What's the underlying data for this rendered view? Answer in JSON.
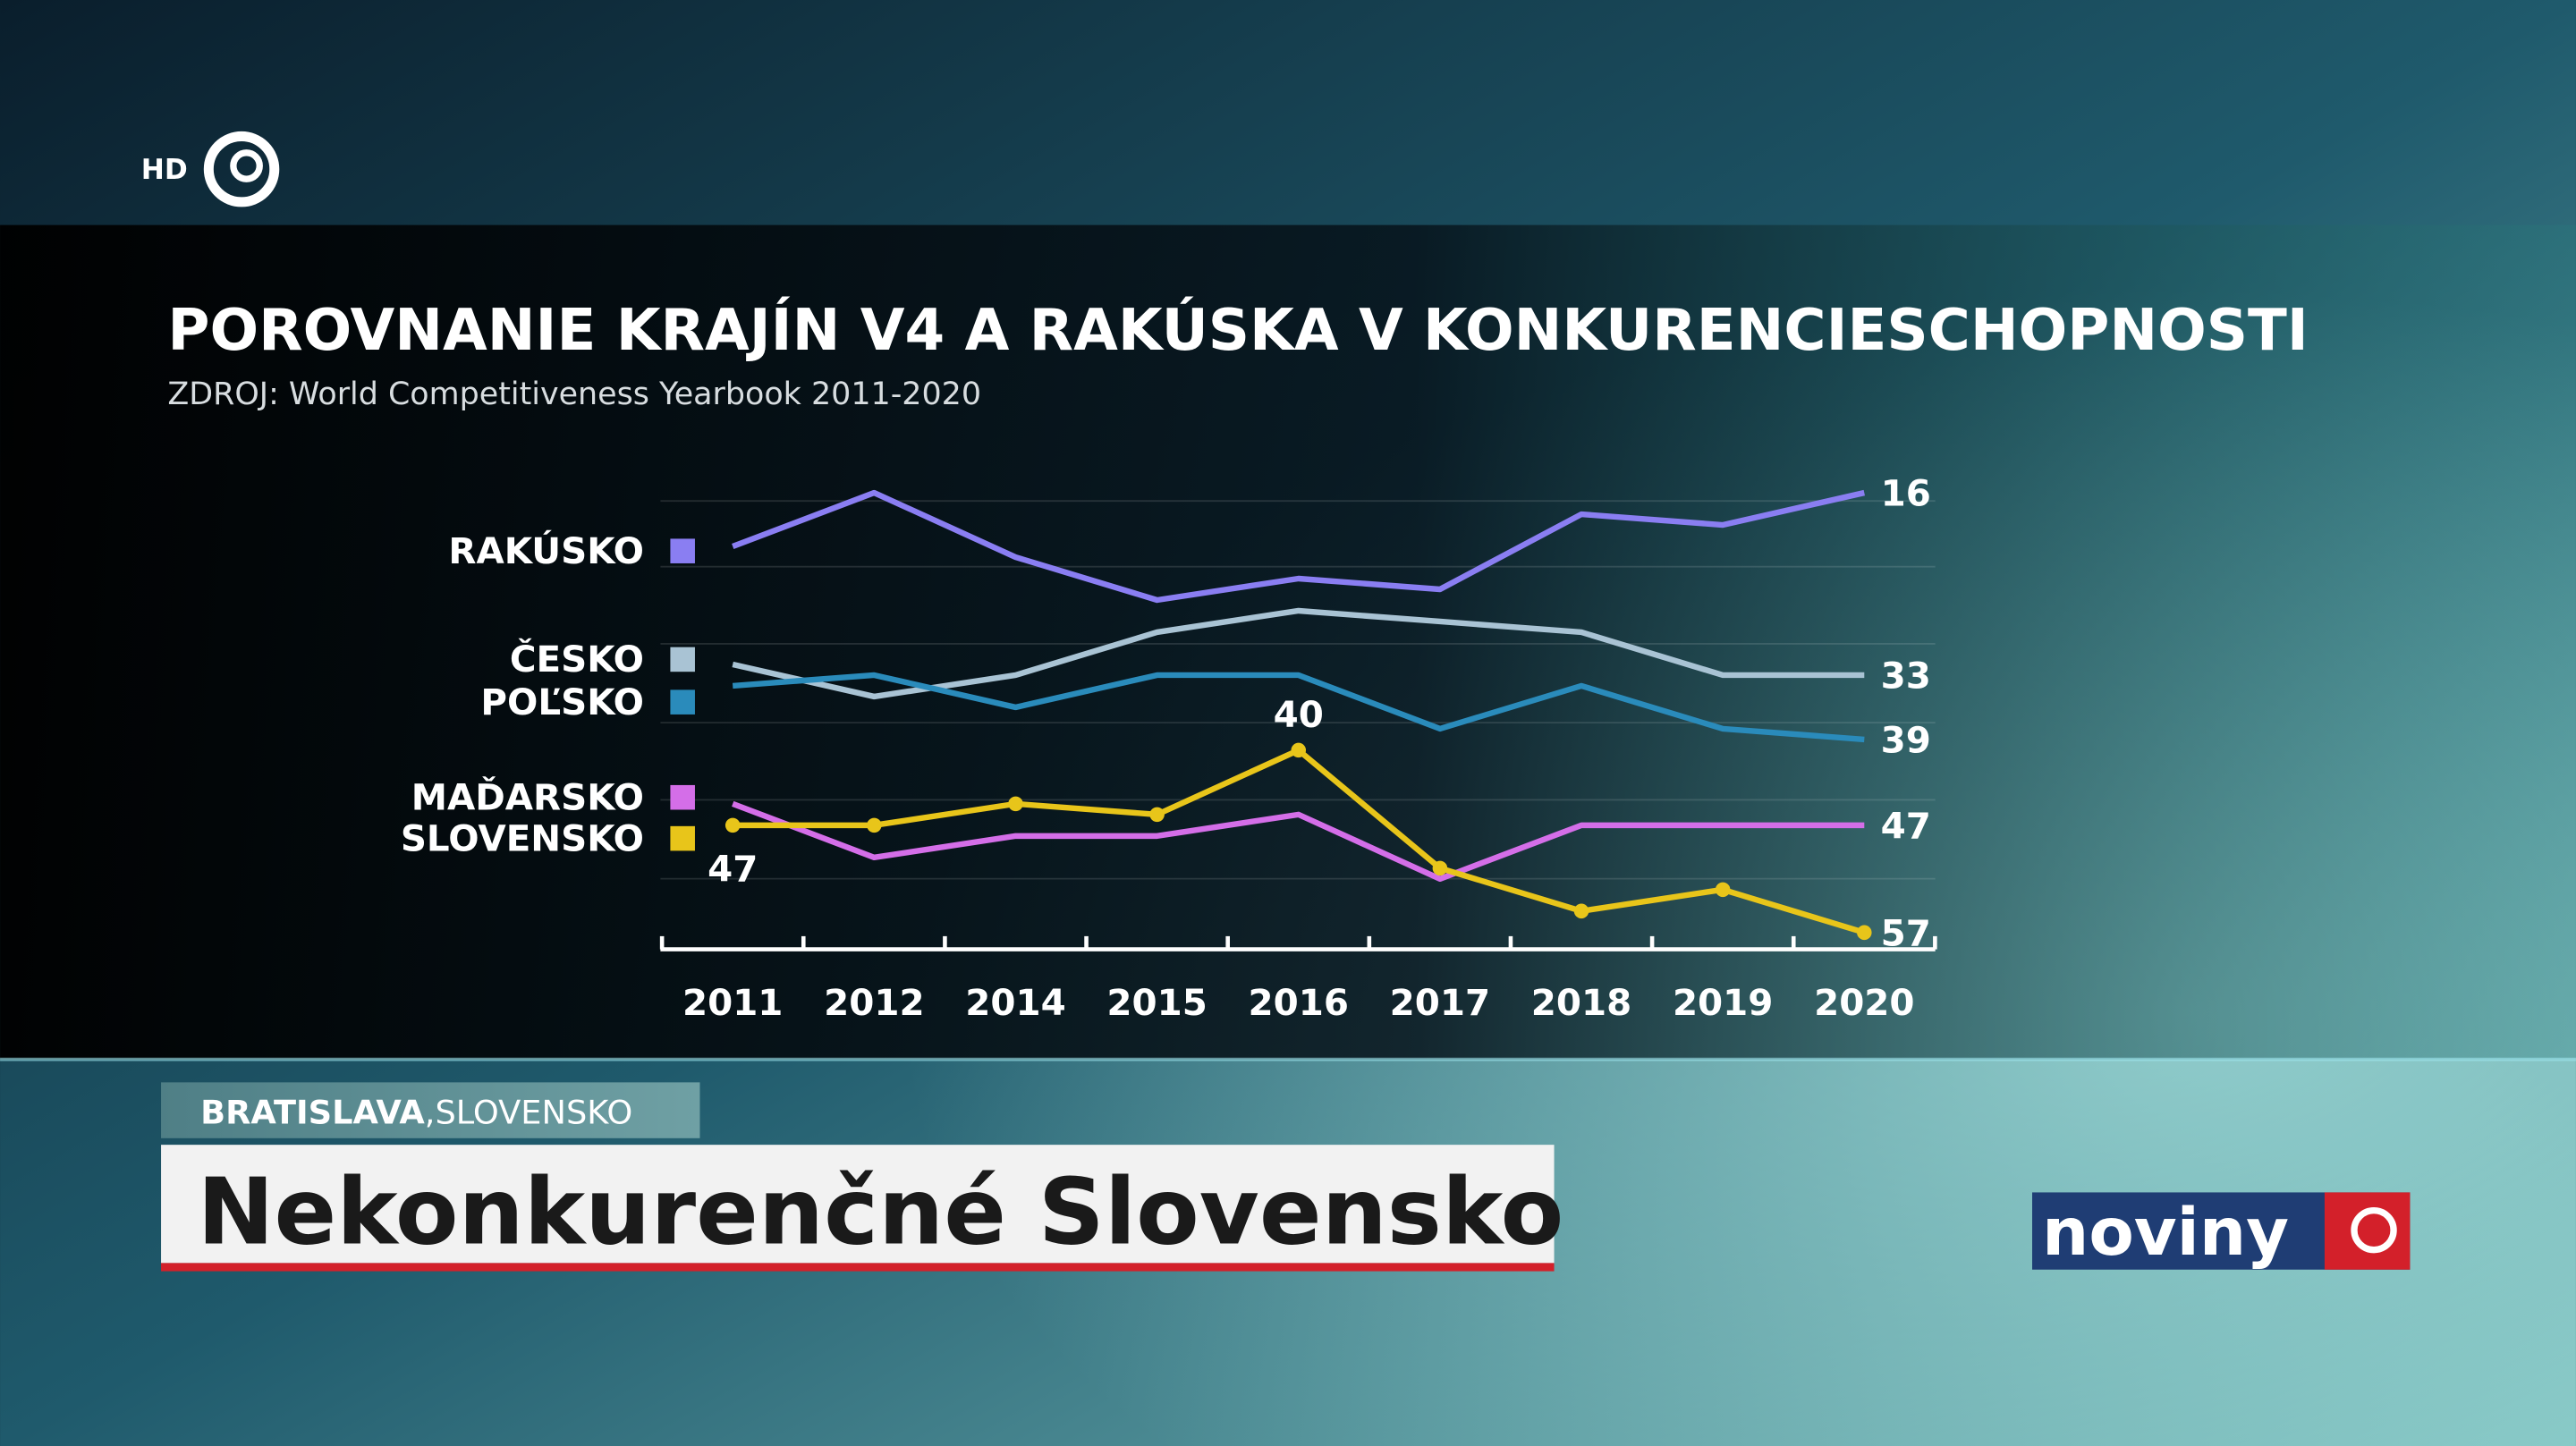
{
  "chart_data": {
    "type": "line",
    "title": "POROVNANIE KRAJÍN V4 A RAKÚSKA V KONKURENCIESCHOPNOSTI",
    "subtitle": "ZDROJ: World Competitiveness Yearbook 2011-2020",
    "categories": [
      "2011",
      "2012",
      "2014",
      "2015",
      "2016",
      "2017",
      "2018",
      "2019",
      "2020"
    ],
    "ylim": [
      15,
      58
    ],
    "y_inverted": true,
    "series": [
      {
        "name": "RAKÚSKO",
        "color": "#8a7ef2",
        "values": [
          21,
          16,
          22,
          26,
          24,
          25,
          18,
          19,
          16
        ],
        "labeled": [
          8
        ]
      },
      {
        "name": "ČESKO",
        "color": "#a9c3d4",
        "values": [
          32,
          35,
          33,
          29,
          27,
          28,
          29,
          33,
          33
        ],
        "labeled": [
          8
        ]
      },
      {
        "name": "POĽSKO",
        "color": "#2a8bbb",
        "values": [
          34,
          33,
          36,
          33,
          33,
          38,
          34,
          38,
          39
        ],
        "labeled": [
          8
        ]
      },
      {
        "name": "MAĎARSKO",
        "color": "#d46ee8",
        "values": [
          45,
          50,
          48,
          48,
          46,
          52,
          47,
          47,
          47
        ],
        "labeled": [
          8
        ]
      },
      {
        "name": "SLOVENSKO",
        "color": "#e8c51a",
        "values": [
          47,
          47,
          45,
          46,
          40,
          51,
          55,
          53,
          57
        ],
        "labeled": [
          0,
          4,
          8
        ],
        "markers": true
      }
    ]
  },
  "channel": "HD",
  "location": [
    "BRATISLAVA",
    ",SLOVENSKO"
  ],
  "headline": "Nekonkurenčné Slovensko",
  "brand": "noviny"
}
